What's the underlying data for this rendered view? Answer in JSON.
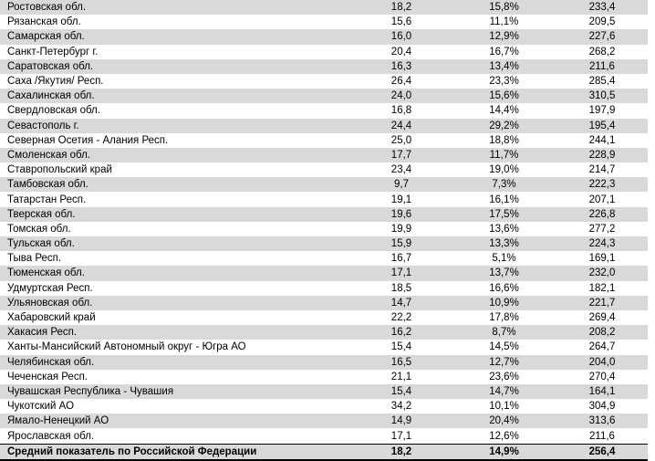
{
  "colors": {
    "row_band": "#d9d9d9",
    "summary_border": "#000000",
    "text": "#000000"
  },
  "table": {
    "rows": [
      {
        "name": "Ростовская обл.",
        "value": "18,2",
        "percent": "15,8%",
        "total": "233,4"
      },
      {
        "name": "Рязанская обл.",
        "value": "15,6",
        "percent": "11,1%",
        "total": "209,5"
      },
      {
        "name": "Самарская обл.",
        "value": "16,0",
        "percent": "12,9%",
        "total": "227,6"
      },
      {
        "name": "Санкт-Петербург г.",
        "value": "20,4",
        "percent": "16,7%",
        "total": "268,2"
      },
      {
        "name": "Саратовская обл.",
        "value": "16,3",
        "percent": "13,4%",
        "total": "211,6"
      },
      {
        "name": "Саха /Якутия/ Респ.",
        "value": "26,4",
        "percent": "23,3%",
        "total": "285,4"
      },
      {
        "name": "Сахалинская обл.",
        "value": "24,0",
        "percent": "15,6%",
        "total": "310,5"
      },
      {
        "name": "Свердловская обл.",
        "value": "16,8",
        "percent": "14,4%",
        "total": "197,9"
      },
      {
        "name": "Севастополь г.",
        "value": "24,4",
        "percent": "29,2%",
        "total": "195,4"
      },
      {
        "name": "Северная Осетия - Алания Респ.",
        "value": "25,0",
        "percent": "18,8%",
        "total": "244,1"
      },
      {
        "name": "Смоленская обл.",
        "value": "17,7",
        "percent": "11,7%",
        "total": "228,9"
      },
      {
        "name": "Ставропольский край",
        "value": "23,4",
        "percent": "19,0%",
        "total": "214,7"
      },
      {
        "name": "Тамбовская обл.",
        "value": "9,7",
        "percent": "7,3%",
        "total": "222,3"
      },
      {
        "name": "Татарстан Респ.",
        "value": "19,1",
        "percent": "16,1%",
        "total": "207,1"
      },
      {
        "name": "Тверская обл.",
        "value": "19,6",
        "percent": "17,5%",
        "total": "226,8"
      },
      {
        "name": "Томская обл.",
        "value": "19,9",
        "percent": "13,6%",
        "total": "277,2"
      },
      {
        "name": "Тульская обл.",
        "value": "15,9",
        "percent": "13,3%",
        "total": "224,3"
      },
      {
        "name": "Тыва Респ.",
        "value": "16,7",
        "percent": "5,1%",
        "total": "169,1"
      },
      {
        "name": "Тюменская обл.",
        "value": "17,1",
        "percent": "13,7%",
        "total": "232,0"
      },
      {
        "name": "Удмуртская Респ.",
        "value": "18,5",
        "percent": "16,6%",
        "total": "182,1"
      },
      {
        "name": "Ульяновская обл.",
        "value": "14,7",
        "percent": "10,9%",
        "total": "221,7"
      },
      {
        "name": "Хабаровский край",
        "value": "22,2",
        "percent": "17,8%",
        "total": "269,4"
      },
      {
        "name": "Хакасия Респ.",
        "value": "16,2",
        "percent": "8,7%",
        "total": "208,2"
      },
      {
        "name": "Ханты-Мансийский Автономный округ - Югра АО",
        "value": "15,4",
        "percent": "14,5%",
        "total": "264,7"
      },
      {
        "name": "Челябинская обл.",
        "value": "16,5",
        "percent": "12,7%",
        "total": "204,0"
      },
      {
        "name": "Чеченская Респ.",
        "value": "21,1",
        "percent": "23,6%",
        "total": "270,4"
      },
      {
        "name": "Чувашская Республика - Чувашия",
        "value": "15,4",
        "percent": "14,7%",
        "total": "164,1"
      },
      {
        "name": "Чукотский АО",
        "value": "34,2",
        "percent": "10,1%",
        "total": "304,9"
      },
      {
        "name": "Ямало-Ненецкий АО",
        "value": "14,9",
        "percent": "20,4%",
        "total": "313,6"
      },
      {
        "name": "Ярославская обл.",
        "value": "17,1",
        "percent": "12,6%",
        "total": "211,6"
      }
    ],
    "summary": {
      "name": "Средний показатель по Российской Федерации",
      "value": "18,2",
      "percent": "14,9%",
      "total": "256,4"
    }
  }
}
